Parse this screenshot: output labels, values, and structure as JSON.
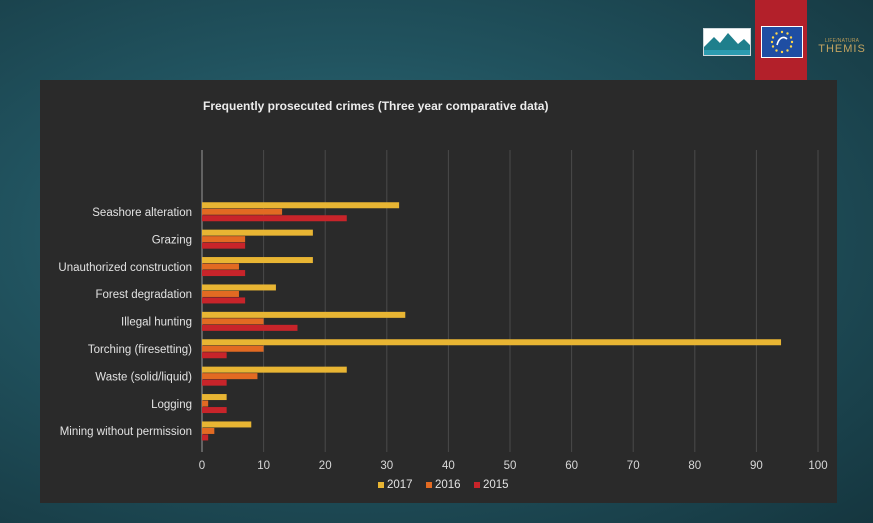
{
  "logos": {
    "mountain_logo": "mountain-logo",
    "eu_life_logo": "eu-life-logo",
    "themis_small": "LIFE/NATURA",
    "themis_big": "THEMIS"
  },
  "chart_data": {
    "type": "bar",
    "orientation": "horizontal",
    "title": "Frequently prosecuted crimes (Three year comparative data)",
    "categories": [
      "Seashore alteration",
      "Grazing",
      "Unauthorized construction",
      "Forest degradation",
      "Illegal hunting",
      "Torching (firesetting)",
      "Waste (solid/liquid)",
      "Logging",
      "Mining without permission"
    ],
    "series": [
      {
        "name": "2017",
        "color": "#e8b533",
        "values": [
          32,
          18,
          18,
          12,
          33,
          94,
          23.5,
          4,
          8
        ]
      },
      {
        "name": "2016",
        "color": "#e26a22",
        "values": [
          13,
          7,
          6,
          6,
          10,
          10,
          9,
          1,
          2
        ]
      },
      {
        "name": "2015",
        "color": "#c8242a",
        "values": [
          23.5,
          7,
          7,
          7,
          15.5,
          4,
          4,
          4,
          1
        ]
      }
    ],
    "xlim": [
      0,
      100
    ],
    "xticks": [
      0,
      10,
      20,
      30,
      40,
      50,
      60,
      70,
      80,
      90,
      100
    ],
    "grid": true,
    "legend_position": "bottom"
  }
}
